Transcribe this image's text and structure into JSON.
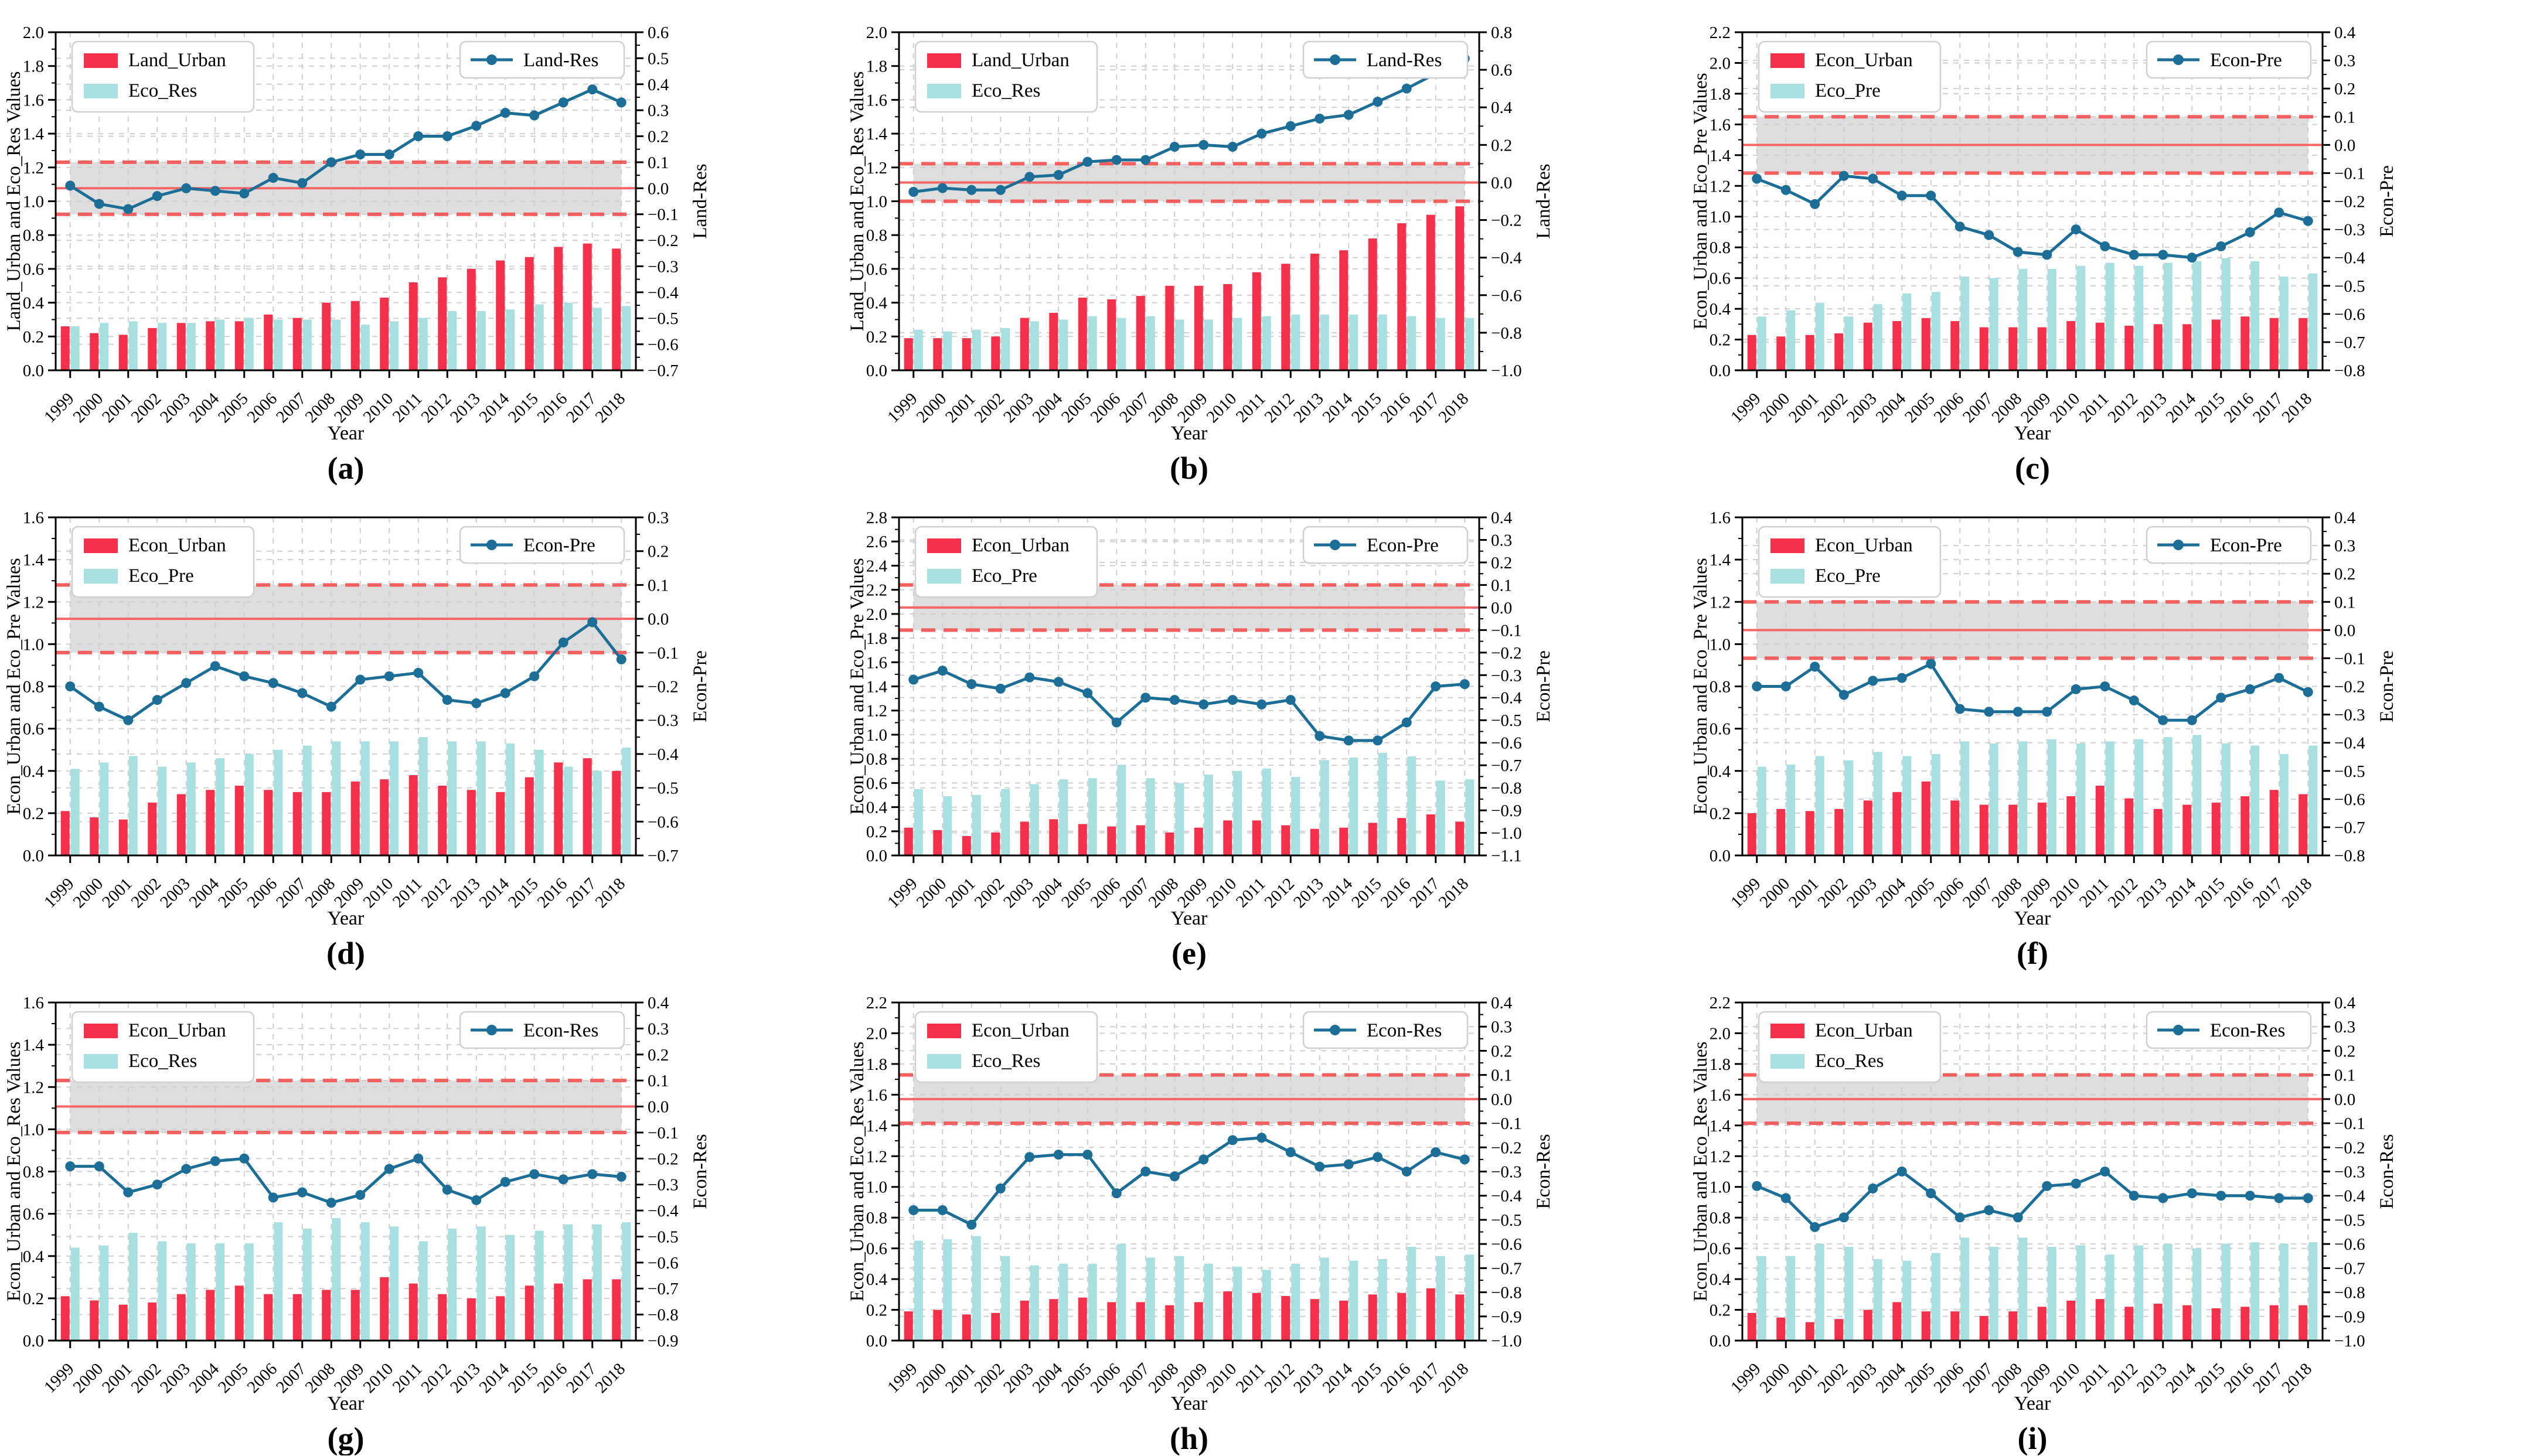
{
  "chart_data": {
    "type": "bar+line",
    "x_label": "Year",
    "categories": [
      "1999",
      "2000",
      "2001",
      "2002",
      "2003",
      "2004",
      "2005",
      "2006",
      "2007",
      "2008",
      "2009",
      "2010",
      "2011",
      "2012",
      "2013",
      "2014",
      "2015",
      "2016",
      "2017",
      "2018"
    ],
    "colors": {
      "bar1": "#F5304A",
      "bar2": "#A7E0DF",
      "line": "#1C6E96",
      "band_fill": "#D8D8D8",
      "band_edge": "#F4605F",
      "grid": "#CFCFCF",
      "axis": "#000000",
      "legend_border": "#D0D0D0"
    },
    "band": {
      "axis": "right",
      "low": -0.1,
      "high": 0.1,
      "center": 0.0
    },
    "panels": [
      {
        "caption": "(a)",
        "left_label": "Land_Urban and Eco_Res Values",
        "right_label": "Land-Res",
        "legend": {
          "bar1": "Land_Urban",
          "bar2": "Eco_Res",
          "line": "Land-Res"
        },
        "left_min": 0.0,
        "left_max": 2.0,
        "left_step": 0.2,
        "right_min": -0.7,
        "right_max": 0.6,
        "right_step": 0.1,
        "series": {
          "bar1": [
            0.26,
            0.22,
            0.21,
            0.25,
            0.28,
            0.29,
            0.29,
            0.33,
            0.31,
            0.4,
            0.41,
            0.43,
            0.52,
            0.55,
            0.6,
            0.65,
            0.67,
            0.73,
            0.75,
            0.72
          ],
          "bar2": [
            0.26,
            0.28,
            0.29,
            0.28,
            0.28,
            0.3,
            0.31,
            0.3,
            0.3,
            0.3,
            0.27,
            0.29,
            0.31,
            0.35,
            0.35,
            0.36,
            0.39,
            0.4,
            0.37,
            0.38
          ],
          "line": [
            0.01,
            -0.06,
            -0.08,
            -0.03,
            0.0,
            -0.01,
            -0.02,
            0.04,
            0.02,
            0.1,
            0.13,
            0.13,
            0.2,
            0.2,
            0.24,
            0.29,
            0.28,
            0.33,
            0.38,
            0.33
          ]
        }
      },
      {
        "caption": "(b)",
        "left_label": "Land_Urban and Eco_Res Values",
        "right_label": "Land-Res",
        "legend": {
          "bar1": "Land_Urban",
          "bar2": "Eco_Res",
          "line": "Land-Res"
        },
        "left_min": 0.0,
        "left_max": 2.0,
        "left_step": 0.2,
        "right_min": -1.0,
        "right_max": 0.8,
        "right_step": 0.2,
        "series": {
          "bar1": [
            0.19,
            0.19,
            0.19,
            0.2,
            0.31,
            0.34,
            0.43,
            0.42,
            0.44,
            0.5,
            0.5,
            0.51,
            0.58,
            0.63,
            0.69,
            0.71,
            0.78,
            0.87,
            0.92,
            0.97
          ],
          "bar2": [
            0.24,
            0.23,
            0.24,
            0.25,
            0.29,
            0.3,
            0.32,
            0.31,
            0.32,
            0.3,
            0.3,
            0.31,
            0.32,
            0.33,
            0.33,
            0.33,
            0.33,
            0.32,
            0.31,
            0.31
          ],
          "line": [
            -0.05,
            -0.03,
            -0.04,
            -0.04,
            0.03,
            0.04,
            0.11,
            0.12,
            0.12,
            0.19,
            0.2,
            0.19,
            0.26,
            0.3,
            0.34,
            0.36,
            0.43,
            0.5,
            0.58,
            0.66
          ]
        }
      },
      {
        "caption": "(c)",
        "left_label": "Econ_Urban and Eco_Pre Values",
        "right_label": "Econ-Pre",
        "legend": {
          "bar1": "Econ_Urban",
          "bar2": "Eco_Pre",
          "line": "Econ-Pre"
        },
        "left_min": 0.0,
        "left_max": 2.2,
        "left_step": 0.2,
        "right_min": -0.8,
        "right_max": 0.4,
        "right_step": 0.1,
        "series": {
          "bar1": [
            0.23,
            0.22,
            0.23,
            0.24,
            0.31,
            0.32,
            0.34,
            0.32,
            0.28,
            0.28,
            0.28,
            0.32,
            0.31,
            0.29,
            0.3,
            0.3,
            0.33,
            0.35,
            0.34,
            0.34
          ],
          "bar2": [
            0.35,
            0.39,
            0.44,
            0.35,
            0.43,
            0.5,
            0.51,
            0.61,
            0.6,
            0.66,
            0.66,
            0.68,
            0.7,
            0.68,
            0.7,
            0.71,
            0.73,
            0.71,
            0.61,
            0.63
          ],
          "line": [
            -0.12,
            -0.16,
            -0.21,
            -0.11,
            -0.12,
            -0.18,
            -0.18,
            -0.29,
            -0.32,
            -0.38,
            -0.39,
            -0.3,
            -0.36,
            -0.39,
            -0.39,
            -0.4,
            -0.36,
            -0.31,
            -0.24,
            -0.27
          ]
        }
      },
      {
        "caption": "(d)",
        "left_label": "Econ_Urban and Eco_Pre Values",
        "right_label": "Econ-Pre",
        "legend": {
          "bar1": "Econ_Urban",
          "bar2": "Eco_Pre",
          "line": "Econ-Pre"
        },
        "left_min": 0.0,
        "left_max": 1.6,
        "left_step": 0.2,
        "right_min": -0.7,
        "right_max": 0.3,
        "right_step": 0.1,
        "series": {
          "bar1": [
            0.21,
            0.18,
            0.17,
            0.25,
            0.29,
            0.31,
            0.33,
            0.31,
            0.3,
            0.3,
            0.35,
            0.36,
            0.38,
            0.33,
            0.31,
            0.3,
            0.37,
            0.44,
            0.46,
            0.4
          ],
          "bar2": [
            0.41,
            0.44,
            0.47,
            0.42,
            0.44,
            0.46,
            0.48,
            0.5,
            0.52,
            0.54,
            0.54,
            0.54,
            0.56,
            0.54,
            0.54,
            0.53,
            0.5,
            0.42,
            0.4,
            0.51
          ],
          "line": [
            -0.2,
            -0.26,
            -0.3,
            -0.24,
            -0.19,
            -0.14,
            -0.17,
            -0.19,
            -0.22,
            -0.26,
            -0.18,
            -0.17,
            -0.16,
            -0.24,
            -0.25,
            -0.22,
            -0.17,
            -0.07,
            -0.01,
            -0.12
          ]
        }
      },
      {
        "caption": "(e)",
        "left_label": "Econ_Urban and Eco_Pre Values",
        "right_label": "Econ-Pre",
        "legend": {
          "bar1": "Econ_Urban",
          "bar2": "Eco_Pre",
          "line": "Econ-Pre"
        },
        "left_min": 0.0,
        "left_max": 2.8,
        "left_step": 0.2,
        "right_min": -1.1,
        "right_max": 0.4,
        "right_step": 0.1,
        "series": {
          "bar1": [
            0.23,
            0.21,
            0.16,
            0.19,
            0.28,
            0.3,
            0.26,
            0.24,
            0.25,
            0.19,
            0.23,
            0.29,
            0.29,
            0.25,
            0.22,
            0.23,
            0.27,
            0.31,
            0.34,
            0.28
          ],
          "bar2": [
            0.55,
            0.49,
            0.5,
            0.55,
            0.59,
            0.63,
            0.64,
            0.75,
            0.64,
            0.6,
            0.67,
            0.7,
            0.72,
            0.65,
            0.79,
            0.81,
            0.85,
            0.82,
            0.62,
            0.63
          ],
          "line": [
            -0.32,
            -0.28,
            -0.34,
            -0.36,
            -0.31,
            -0.33,
            -0.38,
            -0.51,
            -0.4,
            -0.41,
            -0.43,
            -0.41,
            -0.43,
            -0.41,
            -0.57,
            -0.59,
            -0.59,
            -0.51,
            -0.35,
            -0.34
          ]
        }
      },
      {
        "caption": "(f)",
        "left_label": "Econ_Urban and Eco_Pre Values",
        "right_label": "Econ-Pre",
        "legend": {
          "bar1": "Econ_Urban",
          "bar2": "Eco_Pre",
          "line": "Econ-Pre"
        },
        "left_min": 0.0,
        "left_max": 1.6,
        "left_step": 0.2,
        "right_min": -0.8,
        "right_max": 0.4,
        "right_step": 0.1,
        "series": {
          "bar1": [
            0.2,
            0.22,
            0.21,
            0.22,
            0.26,
            0.3,
            0.35,
            0.26,
            0.24,
            0.24,
            0.25,
            0.28,
            0.33,
            0.27,
            0.22,
            0.24,
            0.25,
            0.28,
            0.31,
            0.29
          ],
          "bar2": [
            0.42,
            0.43,
            0.47,
            0.45,
            0.49,
            0.47,
            0.48,
            0.54,
            0.53,
            0.54,
            0.55,
            0.53,
            0.54,
            0.55,
            0.56,
            0.57,
            0.53,
            0.52,
            0.48,
            0.52
          ],
          "line": [
            -0.2,
            -0.2,
            -0.13,
            -0.23,
            -0.18,
            -0.17,
            -0.12,
            -0.28,
            -0.29,
            -0.29,
            -0.29,
            -0.21,
            -0.2,
            -0.25,
            -0.32,
            -0.32,
            -0.24,
            -0.21,
            -0.17,
            -0.22
          ]
        }
      },
      {
        "caption": "(g)",
        "left_label": "Econ_Urban and Eco_Res Values",
        "right_label": "Econ-Res",
        "legend": {
          "bar1": "Econ_Urban",
          "bar2": "Eco_Res",
          "line": "Econ-Res"
        },
        "left_min": 0.0,
        "left_max": 1.6,
        "left_step": 0.2,
        "right_min": -0.9,
        "right_max": 0.4,
        "right_step": 0.1,
        "series": {
          "bar1": [
            0.21,
            0.19,
            0.17,
            0.18,
            0.22,
            0.24,
            0.26,
            0.22,
            0.22,
            0.24,
            0.24,
            0.3,
            0.27,
            0.22,
            0.2,
            0.21,
            0.26,
            0.27,
            0.29,
            0.29
          ],
          "bar2": [
            0.44,
            0.45,
            0.51,
            0.47,
            0.46,
            0.46,
            0.46,
            0.56,
            0.53,
            0.58,
            0.56,
            0.54,
            0.47,
            0.53,
            0.54,
            0.5,
            0.52,
            0.55,
            0.55,
            0.56
          ],
          "line": [
            -0.23,
            -0.23,
            -0.33,
            -0.3,
            -0.24,
            -0.21,
            -0.2,
            -0.35,
            -0.33,
            -0.37,
            -0.34,
            -0.24,
            -0.2,
            -0.32,
            -0.36,
            -0.29,
            -0.26,
            -0.28,
            -0.26,
            -0.27
          ]
        }
      },
      {
        "caption": "(h)",
        "left_label": "Econ_Urban and Eco_Res Values",
        "right_label": "Econ-Res",
        "legend": {
          "bar1": "Econ_Urban",
          "bar2": "Eco_Res",
          "line": "Econ-Res"
        },
        "left_min": 0.0,
        "left_max": 2.2,
        "left_step": 0.2,
        "right_min": -1.0,
        "right_max": 0.4,
        "right_step": 0.1,
        "series": {
          "bar1": [
            0.19,
            0.2,
            0.17,
            0.18,
            0.26,
            0.27,
            0.28,
            0.25,
            0.25,
            0.23,
            0.25,
            0.32,
            0.31,
            0.29,
            0.27,
            0.26,
            0.3,
            0.31,
            0.34,
            0.3
          ],
          "bar2": [
            0.65,
            0.66,
            0.68,
            0.55,
            0.49,
            0.5,
            0.5,
            0.63,
            0.54,
            0.55,
            0.5,
            0.48,
            0.46,
            0.5,
            0.54,
            0.52,
            0.53,
            0.61,
            0.55,
            0.56
          ],
          "line": [
            -0.46,
            -0.46,
            -0.52,
            -0.37,
            -0.24,
            -0.23,
            -0.23,
            -0.39,
            -0.3,
            -0.32,
            -0.25,
            -0.17,
            -0.16,
            -0.22,
            -0.28,
            -0.27,
            -0.24,
            -0.3,
            -0.22,
            -0.25
          ]
        }
      },
      {
        "caption": "(i)",
        "left_label": "Econ_Urban and Eco_Res Values",
        "right_label": "Econ-Res",
        "legend": {
          "bar1": "Econ_Urban",
          "bar2": "Eco_Res",
          "line": "Econ-Res"
        },
        "left_min": 0.0,
        "left_max": 2.2,
        "left_step": 0.2,
        "right_min": -1.0,
        "right_max": 0.4,
        "right_step": 0.1,
        "series": {
          "bar1": [
            0.18,
            0.15,
            0.12,
            0.14,
            0.2,
            0.25,
            0.19,
            0.19,
            0.16,
            0.19,
            0.22,
            0.26,
            0.27,
            0.22,
            0.24,
            0.23,
            0.21,
            0.22,
            0.23,
            0.23
          ],
          "bar2": [
            0.55,
            0.55,
            0.63,
            0.61,
            0.53,
            0.52,
            0.57,
            0.67,
            0.61,
            0.67,
            0.61,
            0.62,
            0.56,
            0.62,
            0.63,
            0.6,
            0.63,
            0.64,
            0.63,
            0.64
          ],
          "line": [
            -0.36,
            -0.41,
            -0.53,
            -0.49,
            -0.37,
            -0.3,
            -0.39,
            -0.49,
            -0.46,
            -0.49,
            -0.36,
            -0.35,
            -0.3,
            -0.4,
            -0.41,
            -0.39,
            -0.4,
            -0.4,
            -0.41,
            -0.41
          ]
        }
      }
    ]
  }
}
